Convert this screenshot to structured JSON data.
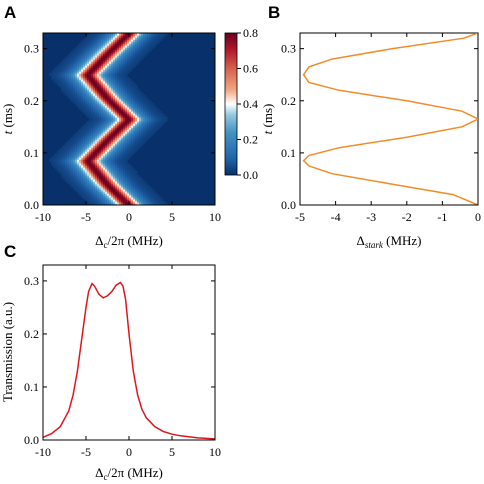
{
  "colors": {
    "axis": "#000000",
    "line_B": "#F28C28",
    "line_C": "#E0161C",
    "colormap": [
      "#08306b",
      "#2166ac",
      "#4393c3",
      "#92c5de",
      "#ffffff",
      "#f4a582",
      "#d6604d",
      "#b2182b",
      "#67001f"
    ]
  },
  "chart_data": [
    {
      "panel": "A",
      "type": "heatmap",
      "xlabel": "Δ_c/2π (MHz)",
      "ylabel": "t (ms)",
      "xlim": [
        -10,
        10
      ],
      "ylim": [
        0,
        0.33
      ],
      "xticks": [
        -10,
        -5,
        0,
        5,
        10
      ],
      "xtick_labels": [
        "-10",
        "-5",
        "0",
        "5",
        "10"
      ],
      "yticks": [
        0.0,
        0.1,
        0.2,
        0.3
      ],
      "ytick_labels": [
        "0.0",
        "0.1",
        "0.2",
        "0.3"
      ],
      "colorbar": {
        "range": [
          0,
          0.8
        ],
        "ticks": [
          0.0,
          0.2,
          0.4,
          0.6,
          0.8
        ],
        "tick_labels": [
          "0.0",
          "0.2",
          "0.4",
          "0.6",
          "0.8"
        ]
      },
      "peak_center_vs_t": {
        "t": [
          0.0,
          0.04,
          0.085,
          0.125,
          0.165,
          0.205,
          0.25,
          0.29,
          0.33
        ],
        "delta_c": [
          0.0,
          -2.5,
          -4.8,
          -2.5,
          0.0,
          -2.5,
          -4.8,
          -2.5,
          0.0
        ]
      },
      "peak_value": 0.8
    },
    {
      "panel": "B",
      "type": "line",
      "xlabel": "Δ_stark (MHz)",
      "ylabel": "t (ms)",
      "xlim": [
        -5,
        0
      ],
      "ylim": [
        0,
        0.33
      ],
      "xticks": [
        -5,
        -4,
        -3,
        -2,
        -1,
        0
      ],
      "xtick_labels": [
        "-5",
        "-4",
        "-3",
        "-2",
        "-1",
        "0"
      ],
      "yticks": [
        0.0,
        0.1,
        0.2,
        0.3
      ],
      "ytick_labels": [
        "0.0",
        "0.1",
        "0.2",
        "0.3"
      ],
      "series": [
        {
          "t": [
            0.0,
            0.02,
            0.04,
            0.06,
            0.075,
            0.085,
            0.095,
            0.11,
            0.13,
            0.15,
            0.165,
            0.18,
            0.2,
            0.22,
            0.235,
            0.25,
            0.265,
            0.28,
            0.3,
            0.32,
            0.33
          ],
          "x": [
            0.0,
            -0.7,
            -2.4,
            -4.1,
            -4.75,
            -4.9,
            -4.75,
            -3.9,
            -2.0,
            -0.45,
            0.0,
            -0.45,
            -2.0,
            -3.9,
            -4.75,
            -4.9,
            -4.75,
            -4.1,
            -2.4,
            -0.4,
            0.0
          ]
        }
      ]
    },
    {
      "panel": "C",
      "type": "line",
      "xlabel": "Δ_c/2π (MHz)",
      "ylabel": "Transmission (a.u.)",
      "xlim": [
        -10,
        10
      ],
      "ylim": [
        0,
        0.33
      ],
      "xticks": [
        -10,
        -5,
        0,
        5,
        10
      ],
      "xtick_labels": [
        "-10",
        "-5",
        "0",
        "5",
        "10"
      ],
      "yticks": [
        0.0,
        0.1,
        0.2,
        0.3
      ],
      "ytick_labels": [
        "0.0",
        "0.1",
        "0.2",
        "0.3"
      ],
      "series": [
        {
          "x": [
            -10,
            -9,
            -8,
            -7,
            -6.5,
            -6,
            -5.5,
            -5,
            -4.7,
            -4.3,
            -4,
            -3.5,
            -3,
            -2.5,
            -2,
            -1.5,
            -1,
            -0.7,
            -0.4,
            0,
            0.5,
            1,
            1.5,
            2,
            3,
            4,
            5,
            6,
            8,
            10
          ],
          "y": [
            0.005,
            0.012,
            0.025,
            0.055,
            0.085,
            0.13,
            0.19,
            0.25,
            0.28,
            0.295,
            0.29,
            0.275,
            0.268,
            0.272,
            0.28,
            0.292,
            0.297,
            0.29,
            0.265,
            0.2,
            0.13,
            0.085,
            0.058,
            0.042,
            0.025,
            0.016,
            0.011,
            0.008,
            0.004,
            0.002
          ]
        }
      ]
    }
  ],
  "panels": {
    "A": {
      "letter": "A"
    },
    "B": {
      "letter": "B"
    },
    "C": {
      "letter": "C"
    }
  },
  "labels": {
    "A_x_main": "Δ",
    "A_x_sub": "c",
    "A_x_rest": "/2π (MHz)",
    "A_y_italic": "t",
    "A_y_rest": " (ms)",
    "B_x_main": "Δ",
    "B_x_sub": "stark",
    "B_x_rest": " (MHz)",
    "B_y_italic": "t",
    "B_y_rest": " (ms)",
    "C_x_main": "Δ",
    "C_x_sub": "c",
    "C_x_rest": "/2π (MHz)",
    "C_y": "Transmission (a.u.)"
  }
}
